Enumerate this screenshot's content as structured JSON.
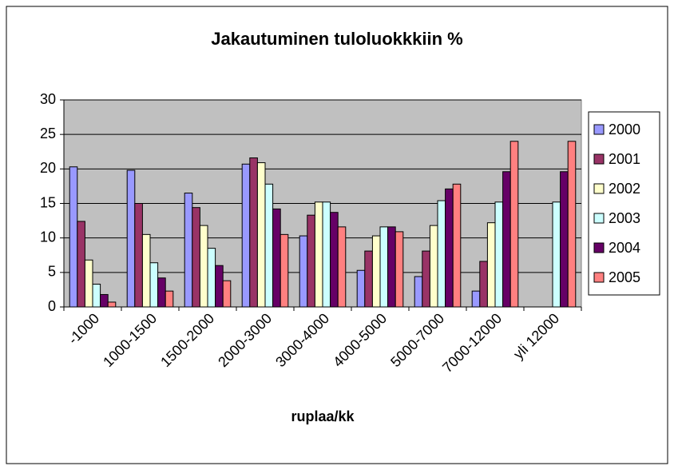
{
  "chart_data": {
    "type": "bar",
    "title": "Jakautuminen tuloluokkkiin %",
    "x_label": "ruplaa/kk",
    "categories": [
      "-1000",
      "1000-1500",
      "1500-2000",
      "2000-3000",
      "3000-4000",
      "4000-5000",
      "5000-7000",
      "7000-12000",
      "yli 12000"
    ],
    "series": [
      {
        "name": "2000",
        "color": "#9999ff",
        "values": [
          20.3,
          19.8,
          16.5,
          20.7,
          10.3,
          5.3,
          4.4,
          2.3,
          null
        ]
      },
      {
        "name": "2001",
        "color": "#993366",
        "values": [
          12.4,
          15.0,
          14.4,
          21.6,
          13.3,
          8.1,
          8.1,
          6.6,
          null
        ]
      },
      {
        "name": "2002",
        "color": "#ffffcc",
        "values": [
          6.8,
          10.5,
          11.8,
          20.9,
          15.2,
          10.3,
          11.8,
          12.2,
          null
        ]
      },
      {
        "name": "2003",
        "color": "#ccffff",
        "values": [
          3.3,
          6.4,
          8.5,
          17.8,
          15.2,
          11.6,
          15.4,
          15.2,
          15.2
        ]
      },
      {
        "name": "2004",
        "color": "#660066",
        "values": [
          1.8,
          4.2,
          6.0,
          14.2,
          13.7,
          11.6,
          17.1,
          19.6,
          19.6
        ]
      },
      {
        "name": "2005",
        "color": "#ff8080",
        "values": [
          0.7,
          2.3,
          3.8,
          10.5,
          11.6,
          10.9,
          17.8,
          24.0,
          24.0
        ]
      }
    ],
    "ylim": [
      0,
      30
    ],
    "yticks": [
      0,
      5,
      10,
      15,
      20,
      25,
      30
    ],
    "grid": true,
    "legend": "right",
    "plot_background": "#c0c0c0"
  }
}
